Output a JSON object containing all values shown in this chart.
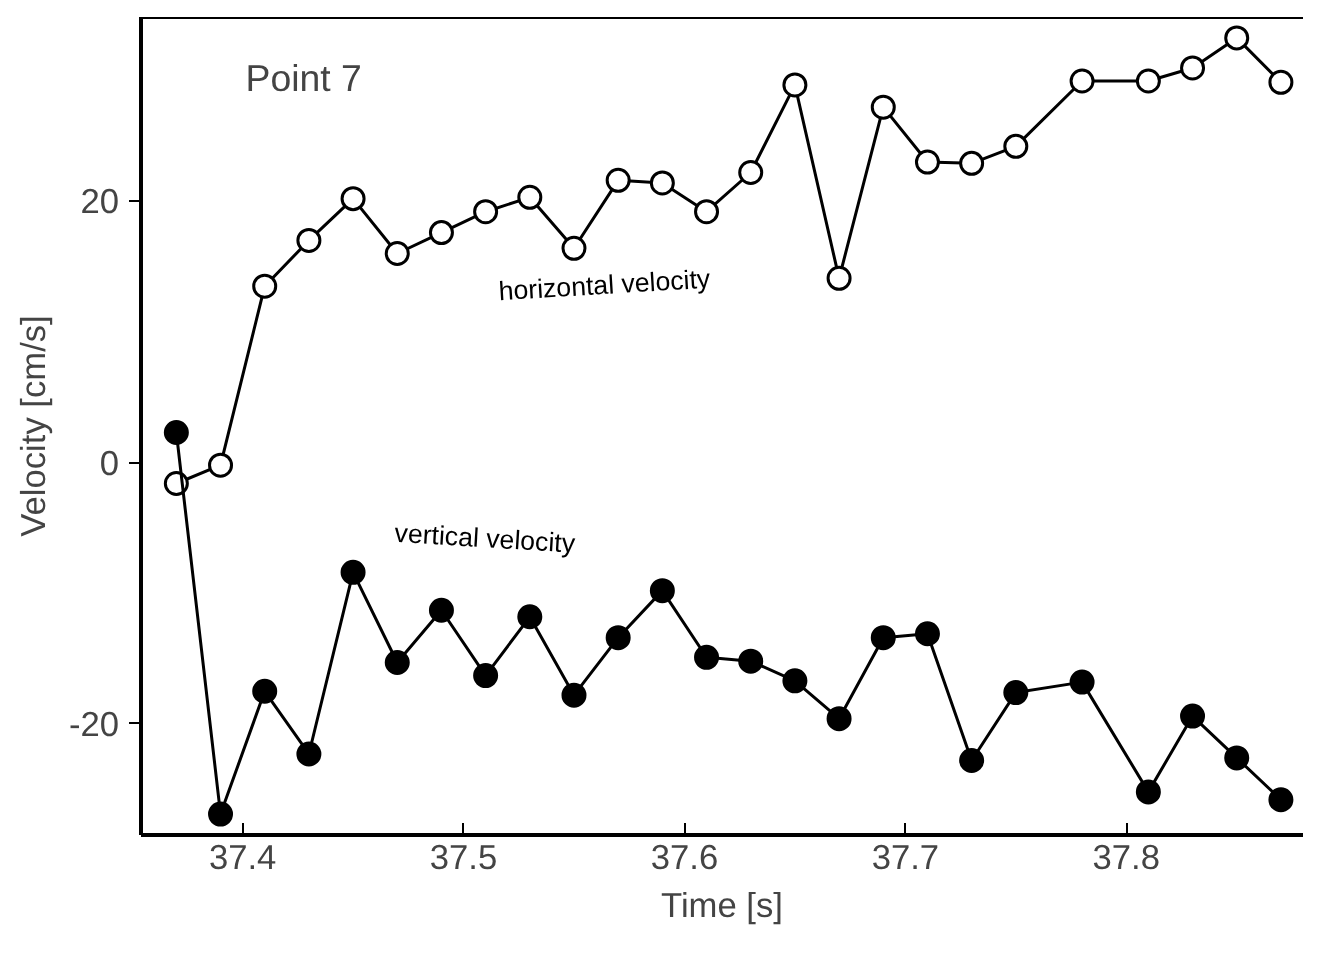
{
  "chart_data": {
    "type": "line",
    "xlabel": "Time [s]",
    "ylabel": "Velocity [cm/s]",
    "annotations": [
      "Point 7"
    ],
    "xlim": [
      37.354,
      37.88
    ],
    "ylim": [
      -28.5,
      34.1
    ],
    "xticks": [
      37.4,
      37.5,
      37.6,
      37.7,
      37.8
    ],
    "yticks": [
      -20,
      0,
      20
    ],
    "grid": false,
    "marker": "circle",
    "line_style": "solid",
    "x": [
      37.37,
      37.39,
      37.41,
      37.43,
      37.45,
      37.47,
      37.49,
      37.51,
      37.53,
      37.55,
      37.57,
      37.59,
      37.61,
      37.63,
      37.65,
      37.67,
      37.69,
      37.71,
      37.73,
      37.75,
      37.78,
      37.81,
      37.83,
      37.85,
      37.87
    ],
    "series": [
      {
        "name": "horizontal velocity",
        "color": "#ffffff",
        "values": [
          -1.6,
          -0.2,
          13.5,
          17.0,
          20.2,
          16.0,
          17.6,
          19.2,
          20.3,
          16.4,
          21.6,
          21.4,
          19.2,
          22.2,
          28.9,
          14.1,
          27.2,
          23.0,
          22.9,
          24.2,
          29.2,
          29.2,
          30.2,
          32.5,
          29.1
        ]
      },
      {
        "name": "vertical velocity",
        "color": "#000000",
        "values": [
          2.3,
          -26.9,
          -17.5,
          -22.3,
          -8.4,
          -15.3,
          -11.3,
          -16.3,
          -11.8,
          -17.8,
          -13.4,
          -9.8,
          -14.9,
          -15.2,
          -16.7,
          -19.6,
          -13.4,
          -13.1,
          -22.8,
          -17.6,
          -16.8,
          -25.2,
          -19.4,
          -22.6,
          -25.8
        ]
      }
    ]
  }
}
